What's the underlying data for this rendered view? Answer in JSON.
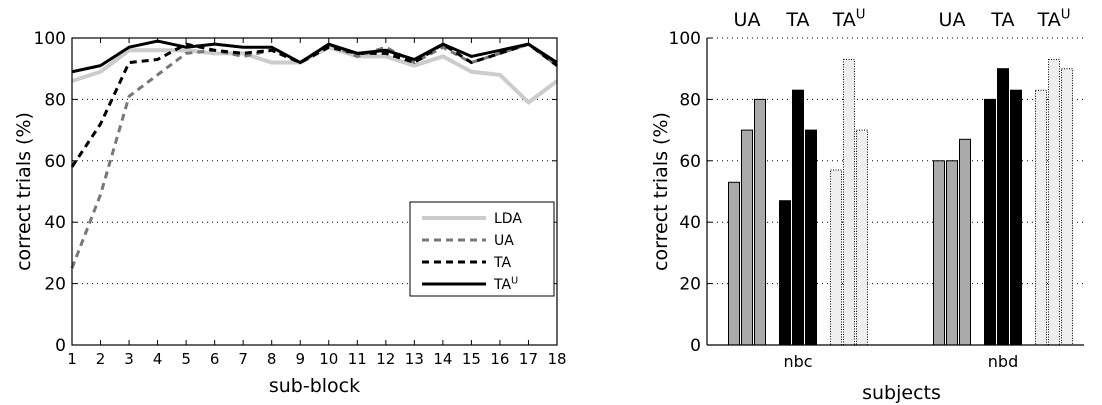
{
  "chart_data": [
    {
      "type": "line",
      "xlabel": "sub-block",
      "ylabel": "correct trials (%)",
      "xlim": [
        1,
        18
      ],
      "ylim": [
        0,
        100
      ],
      "x_ticks": [
        1,
        2,
        3,
        4,
        5,
        6,
        7,
        8,
        9,
        10,
        11,
        12,
        13,
        14,
        15,
        16,
        17,
        18
      ],
      "y_ticks": [
        0,
        20,
        40,
        60,
        80,
        100
      ],
      "grid": "horizontal dotted",
      "legend_position": "lower-right",
      "x": [
        1,
        2,
        3,
        4,
        5,
        6,
        7,
        8,
        9,
        10,
        11,
        12,
        13,
        14,
        15,
        16,
        17,
        18
      ],
      "series": [
        {
          "name": "LDA",
          "color": "#cccccc",
          "dash": "solid",
          "width": 4,
          "values": [
            86,
            89,
            96,
            96,
            96,
            95,
            95,
            92,
            92,
            97,
            94,
            94,
            91,
            94,
            89,
            88,
            79,
            86
          ]
        },
        {
          "name": "UA",
          "color": "#777777",
          "dash": "dashed",
          "width": 3,
          "values": [
            25,
            49,
            81,
            88,
            95,
            96,
            94,
            96,
            92,
            98,
            94,
            97,
            92,
            97,
            92,
            95,
            98,
            91
          ]
        },
        {
          "name": "TA",
          "color": "#000000",
          "dash": "dashed",
          "width": 3,
          "values": [
            58,
            72,
            92,
            93,
            98,
            96,
            95,
            96,
            92,
            97,
            95,
            95,
            92,
            98,
            92,
            95,
            98,
            91
          ]
        },
        {
          "name": "TA",
          "name_sup": "U",
          "color": "#000000",
          "dash": "solid",
          "width": 3,
          "values": [
            89,
            91,
            97,
            99,
            97,
            98,
            97,
            97,
            92,
            98,
            95,
            96,
            93,
            98,
            94,
            96,
            98,
            92
          ]
        }
      ]
    },
    {
      "type": "bar",
      "xlabel": "subjects",
      "ylabel": "correct trials (%)",
      "ylim": [
        0,
        100
      ],
      "y_ticks": [
        0,
        20,
        40,
        60,
        80,
        100
      ],
      "grid": "horizontal dotted",
      "categories": [
        "nbc",
        "nbd"
      ],
      "group_labels": [
        {
          "name": "UA",
          "color": "#aaaaaa"
        },
        {
          "name": "TA",
          "color": "#000000"
        },
        {
          "name": "TA",
          "sup": "U",
          "color": "#000000"
        }
      ],
      "series": [
        {
          "name": "UA",
          "fill": "#aaaaaa",
          "values": [
            [
              53,
              70,
              80
            ],
            [
              60,
              60,
              67
            ]
          ]
        },
        {
          "name": "TA",
          "fill": "#000000",
          "values": [
            [
              47,
              83,
              70
            ],
            [
              80,
              90,
              83
            ]
          ]
        },
        {
          "name": "TA",
          "sup": "U",
          "fill": "#eeeeee",
          "dotted": true,
          "values": [
            [
              57,
              93,
              70
            ],
            [
              83,
              93,
              90
            ]
          ]
        }
      ]
    }
  ]
}
